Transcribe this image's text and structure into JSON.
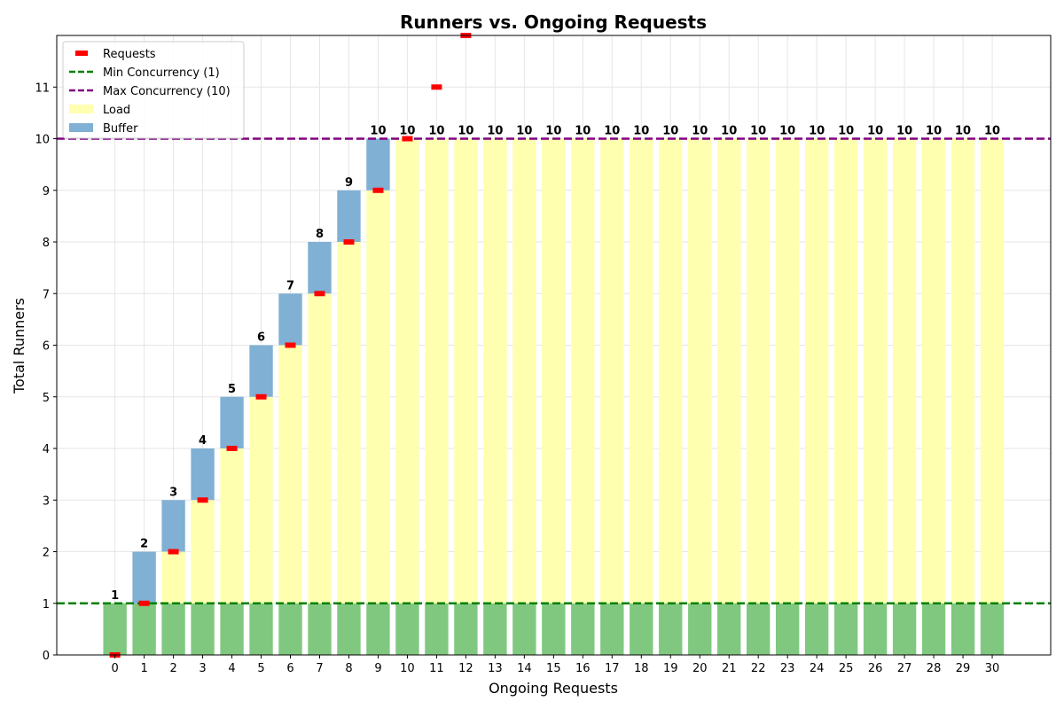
{
  "chart_data": {
    "type": "bar",
    "title": "Runners vs. Ongoing Requests",
    "xlabel": "Ongoing Requests",
    "ylabel": "Total Runners",
    "x": [
      0,
      1,
      2,
      3,
      4,
      5,
      6,
      7,
      8,
      9,
      10,
      11,
      12,
      13,
      14,
      15,
      16,
      17,
      18,
      19,
      20,
      21,
      22,
      23,
      24,
      25,
      26,
      27,
      28,
      29,
      30
    ],
    "ylim": [
      0,
      12
    ],
    "yticks": [
      0,
      1,
      2,
      3,
      4,
      5,
      6,
      7,
      8,
      9,
      10,
      11
    ],
    "grid": true,
    "legend_position": "top-left",
    "series": [
      {
        "key": "base",
        "values": [
          1,
          1,
          1,
          1,
          1,
          1,
          1,
          1,
          1,
          1,
          1,
          1,
          1,
          1,
          1,
          1,
          1,
          1,
          1,
          1,
          1,
          1,
          1,
          1,
          1,
          1,
          1,
          1,
          1,
          1,
          1
        ]
      },
      {
        "name": "Load",
        "key": "load",
        "values": [
          0,
          0,
          1,
          2,
          3,
          4,
          5,
          6,
          7,
          8,
          9,
          9,
          9,
          9,
          9,
          9,
          9,
          9,
          9,
          9,
          9,
          9,
          9,
          9,
          9,
          9,
          9,
          9,
          9,
          9,
          9
        ]
      },
      {
        "name": "Buffer",
        "key": "buffer",
        "values": [
          0,
          1,
          1,
          1,
          1,
          1,
          1,
          1,
          1,
          1,
          0,
          0,
          0,
          0,
          0,
          0,
          0,
          0,
          0,
          0,
          0,
          0,
          0,
          0,
          0,
          0,
          0,
          0,
          0,
          0,
          0
        ]
      },
      {
        "name": "Requests",
        "key": "requests",
        "type": "scatter",
        "values": [
          0,
          1,
          2,
          3,
          4,
          5,
          6,
          7,
          8,
          9,
          10,
          11,
          12
        ]
      }
    ],
    "totals": [
      1,
      2,
      3,
      4,
      5,
      6,
      7,
      8,
      9,
      10,
      10,
      10,
      10,
      10,
      10,
      10,
      10,
      10,
      10,
      10,
      10,
      10,
      10,
      10,
      10,
      10,
      10,
      10,
      10,
      10,
      10
    ],
    "reference_lines": [
      {
        "name": "Min Concurrency (1)",
        "value": 1
      },
      {
        "name": "Max Concurrency (10)",
        "value": 10
      }
    ],
    "colors": {
      "base": "#80c880",
      "load": "#ffffb0",
      "buffer": "#80b0d4",
      "requests": "#ff0000",
      "min_line": "#008000",
      "max_line": "#800080",
      "grid": "#e6e6e6"
    },
    "legend": [
      "Requests",
      "Min Concurrency (1)",
      "Max Concurrency (10)",
      "Load",
      "Buffer"
    ]
  }
}
